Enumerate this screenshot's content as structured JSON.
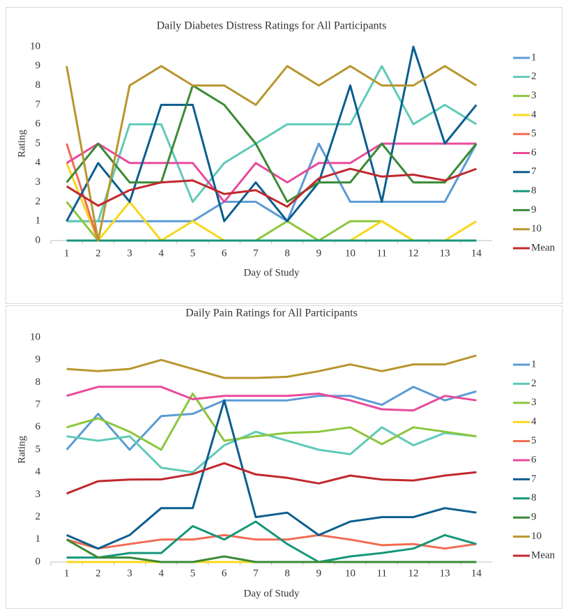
{
  "chart_data": [
    {
      "type": "line",
      "title": "Daily Diabetes Distress Ratings for All Participants",
      "x_label": "Day of Study",
      "y_label": "Rating",
      "categories": [
        "1",
        "2",
        "3",
        "4",
        "5",
        "6",
        "7",
        "8",
        "9",
        "10",
        "11",
        "12",
        "13",
        "14"
      ],
      "ylim": [
        0,
        10
      ],
      "yticks": [
        0,
        1,
        2,
        3,
        4,
        5,
        6,
        7,
        8,
        9,
        10
      ],
      "grid": false,
      "legend": "right",
      "series": [
        {
          "name": "1",
          "color": "#5b9bd5",
          "values": [
            1,
            1,
            1,
            1,
            1,
            2,
            2,
            1,
            5,
            2,
            2,
            2,
            2,
            5
          ]
        },
        {
          "name": "2",
          "color": "#5fcab8",
          "values": [
            1,
            1,
            6,
            6,
            2,
            4,
            5,
            6,
            6,
            6,
            9,
            6,
            7,
            6
          ]
        },
        {
          "name": "3",
          "color": "#8cc63e",
          "values": [
            2,
            0,
            0,
            0,
            0,
            0,
            0,
            1,
            0,
            1,
            1,
            0,
            0,
            0
          ]
        },
        {
          "name": "4",
          "color": "#f9d71c",
          "values": [
            4,
            0,
            2,
            0,
            1,
            0,
            0,
            0,
            0,
            0,
            1,
            0,
            0,
            1
          ]
        },
        {
          "name": "5",
          "color": "#f26b52",
          "values": [
            5,
            0,
            0,
            0,
            0,
            0,
            0,
            0,
            0,
            0,
            0,
            0,
            0,
            0
          ]
        },
        {
          "name": "6",
          "color": "#e84a9b",
          "values": [
            4,
            5,
            4,
            4,
            4,
            2,
            4,
            3,
            4,
            4,
            5,
            5,
            5,
            5
          ]
        },
        {
          "name": "7",
          "color": "#0b5e8f",
          "values": [
            1,
            4,
            2,
            7,
            7,
            1,
            3,
            1,
            3,
            8,
            2,
            10,
            5,
            7
          ]
        },
        {
          "name": "8",
          "color": "#15967a",
          "values": [
            0,
            0,
            0,
            0,
            0,
            0,
            0,
            0,
            0,
            0,
            0,
            0,
            0,
            0
          ]
        },
        {
          "name": "9",
          "color": "#3a8a35",
          "values": [
            3,
            5,
            3,
            3,
            8,
            7,
            5,
            2,
            3,
            3,
            5,
            3,
            3,
            5
          ]
        },
        {
          "name": "10",
          "color": "#b8962e",
          "values": [
            9,
            0,
            8,
            9,
            8,
            8,
            7,
            9,
            8,
            9,
            8,
            8,
            9,
            8
          ]
        },
        {
          "name": "Mean",
          "color": "#c0282d",
          "values": [
            2.8,
            1.8,
            2.6,
            3.0,
            3.1,
            2.4,
            2.6,
            1.75,
            3.2,
            3.7,
            3.3,
            3.4,
            3.1,
            3.7
          ]
        }
      ]
    },
    {
      "type": "line",
      "title": "Daily Pain Ratings for All Participants",
      "x_label": "Day of Study",
      "y_label": "Rating",
      "categories": [
        "1",
        "2",
        "3",
        "4",
        "5",
        "6",
        "7",
        "8",
        "9",
        "10",
        "11",
        "12",
        "13",
        "14"
      ],
      "ylim": [
        0,
        10
      ],
      "yticks": [
        0,
        1,
        2,
        3,
        4,
        5,
        6,
        7,
        8,
        9,
        10
      ],
      "grid": false,
      "legend": "right",
      "series": [
        {
          "name": "1",
          "color": "#5b9bd5",
          "values": [
            5,
            6.6,
            5,
            6.5,
            6.6,
            7.2,
            7.2,
            7.2,
            7.4,
            7.4,
            7.0,
            7.8,
            7.2,
            7.6
          ]
        },
        {
          "name": "2",
          "color": "#5fcab8",
          "values": [
            5.6,
            5.4,
            5.6,
            4.2,
            4.0,
            5.2,
            5.8,
            5.4,
            5.0,
            4.8,
            6.0,
            5.2,
            5.75,
            5.6
          ]
        },
        {
          "name": "3",
          "color": "#8cc63e",
          "values": [
            6.0,
            6.4,
            5.8,
            5.0,
            7.5,
            5.4,
            5.6,
            5.75,
            5.8,
            6.0,
            5.25,
            6.0,
            5.8,
            5.6
          ]
        },
        {
          "name": "4",
          "color": "#f9d71c",
          "values": [
            0,
            0,
            0,
            0,
            0,
            0,
            0,
            0,
            0,
            0,
            0,
            0,
            0,
            0
          ]
        },
        {
          "name": "5",
          "color": "#f26b52",
          "values": [
            1.0,
            0.6,
            0.8,
            1.0,
            1.0,
            1.2,
            1.0,
            1.0,
            1.2,
            1.0,
            0.75,
            0.8,
            0.6,
            0.8
          ]
        },
        {
          "name": "6",
          "color": "#e84a9b",
          "values": [
            7.4,
            7.8,
            7.8,
            7.8,
            7.25,
            7.4,
            7.4,
            7.4,
            7.5,
            7.2,
            6.8,
            6.75,
            7.4,
            7.2
          ]
        },
        {
          "name": "7",
          "color": "#0b5e8f",
          "values": [
            1.2,
            0.6,
            1.2,
            2.4,
            2.4,
            7.2,
            2.0,
            2.2,
            1.2,
            1.8,
            2.0,
            2.0,
            2.4,
            2.2
          ]
        },
        {
          "name": "8",
          "color": "#15967a",
          "values": [
            0.2,
            0.2,
            0.4,
            0.4,
            1.6,
            1.0,
            1.8,
            0.8,
            0,
            0.25,
            0.4,
            0.6,
            1.2,
            0.8
          ]
        },
        {
          "name": "9",
          "color": "#3a8a35",
          "values": [
            1.0,
            0.2,
            0.2,
            0,
            0,
            0.25,
            0,
            0,
            0,
            0,
            0,
            0,
            0,
            0
          ]
        },
        {
          "name": "10",
          "color": "#b8962e",
          "values": [
            8.6,
            8.5,
            8.6,
            9.0,
            8.6,
            8.2,
            8.2,
            8.25,
            8.5,
            8.8,
            8.5,
            8.8,
            8.8,
            9.2
          ]
        },
        {
          "name": "Mean",
          "color": "#c0282d",
          "values": [
            3.05,
            3.6,
            3.67,
            3.68,
            3.92,
            4.4,
            3.9,
            3.75,
            3.5,
            3.85,
            3.67,
            3.63,
            3.85,
            4.0
          ]
        }
      ]
    }
  ]
}
